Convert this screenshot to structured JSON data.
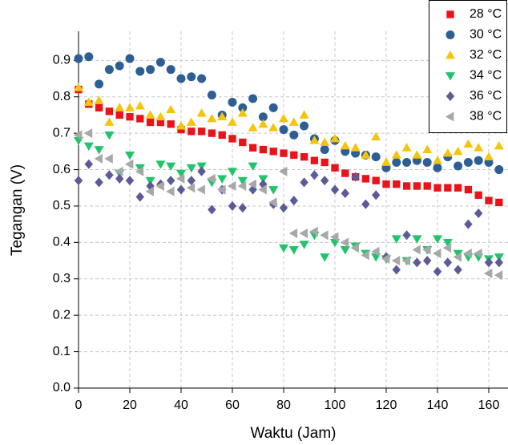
{
  "chart_data": {
    "type": "scatter",
    "xlabel": "Waktu (Jam)",
    "ylabel": "Tegangan (V)",
    "x": [
      0,
      4,
      8,
      12,
      16,
      20,
      24,
      28,
      32,
      36,
      40,
      44,
      48,
      52,
      56,
      60,
      64,
      68,
      72,
      76,
      80,
      84,
      88,
      92,
      96,
      100,
      104,
      108,
      112,
      116,
      120,
      124,
      128,
      132,
      136,
      140,
      144,
      148,
      152,
      156,
      160,
      164
    ],
    "series": [
      {
        "name": "28 °C",
        "color": "#e8141a",
        "marker": "square",
        "values": [
          0.82,
          0.78,
          0.77,
          0.76,
          0.75,
          0.745,
          0.74,
          0.73,
          0.73,
          0.725,
          0.71,
          0.705,
          0.705,
          0.7,
          0.695,
          0.685,
          0.675,
          0.66,
          0.655,
          0.65,
          0.645,
          0.64,
          0.635,
          0.625,
          0.62,
          0.605,
          0.59,
          0.58,
          0.575,
          0.57,
          0.56,
          0.56,
          0.555,
          0.555,
          0.555,
          0.55,
          0.55,
          0.55,
          0.545,
          0.53,
          0.515,
          0.51
        ]
      },
      {
        "name": "30 °C",
        "color": "#2e5f94",
        "marker": "circle",
        "values": [
          0.905,
          0.91,
          0.835,
          0.875,
          0.885,
          0.905,
          0.87,
          0.875,
          0.895,
          0.875,
          0.85,
          0.855,
          0.85,
          0.805,
          0.75,
          0.785,
          0.77,
          0.795,
          0.745,
          0.77,
          0.71,
          0.695,
          0.72,
          0.685,
          0.655,
          0.68,
          0.65,
          0.645,
          0.64,
          0.635,
          0.605,
          0.62,
          0.62,
          0.625,
          0.62,
          0.605,
          0.635,
          0.61,
          0.62,
          0.625,
          0.62,
          0.6
        ]
      },
      {
        "name": "32 °C",
        "color": "#f5c40f",
        "marker": "triangle-up",
        "values": [
          0.825,
          0.785,
          0.79,
          0.73,
          0.77,
          0.77,
          0.775,
          0.75,
          0.745,
          0.765,
          0.72,
          0.73,
          0.755,
          0.74,
          0.745,
          0.73,
          0.755,
          0.715,
          0.725,
          0.715,
          0.74,
          0.73,
          0.75,
          0.68,
          0.675,
          0.685,
          0.665,
          0.66,
          0.64,
          0.69,
          0.62,
          0.64,
          0.66,
          0.64,
          0.655,
          0.625,
          0.645,
          0.65,
          0.67,
          0.66,
          0.635,
          0.665
        ]
      },
      {
        "name": "34 °C",
        "color": "#21c46b",
        "marker": "triangle-down",
        "values": [
          0.68,
          0.665,
          0.655,
          0.695,
          0.59,
          0.64,
          0.605,
          0.57,
          0.615,
          0.61,
          0.59,
          0.605,
          0.61,
          0.565,
          0.575,
          0.595,
          0.57,
          0.61,
          0.575,
          0.545,
          0.385,
          0.38,
          0.395,
          0.42,
          0.36,
          0.4,
          0.38,
          0.39,
          0.37,
          0.36,
          0.355,
          0.41,
          0.35,
          0.41,
          0.38,
          0.41,
          0.4,
          0.37,
          0.36,
          0.36,
          0.355,
          0.36
        ]
      },
      {
        "name": "36 °C",
        "color": "#5b5b9a",
        "marker": "diamond",
        "values": [
          0.57,
          0.615,
          0.565,
          0.585,
          0.575,
          0.57,
          0.525,
          0.555,
          0.56,
          0.57,
          0.545,
          0.57,
          0.595,
          0.49,
          0.545,
          0.5,
          0.495,
          0.545,
          0.56,
          0.505,
          0.495,
          0.515,
          0.565,
          0.585,
          0.57,
          0.545,
          0.535,
          0.58,
          0.505,
          0.53,
          0.36,
          0.325,
          0.42,
          0.345,
          0.35,
          0.32,
          0.345,
          0.325,
          0.45,
          0.48,
          0.345,
          0.345
        ]
      },
      {
        "name": "38 °C",
        "color": "#a8a8a8",
        "marker": "triangle-left",
        "values": [
          0.695,
          0.7,
          0.63,
          0.63,
          0.595,
          0.615,
          0.595,
          0.54,
          0.555,
          0.54,
          0.575,
          0.55,
          0.545,
          0.575,
          0.545,
          0.555,
          0.555,
          0.56,
          0.545,
          0.51,
          0.595,
          0.425,
          0.425,
          0.43,
          0.42,
          0.415,
          0.4,
          0.385,
          0.365,
          0.375,
          0.355,
          0.35,
          0.35,
          0.38,
          0.38,
          0.37,
          0.385,
          0.36,
          0.37,
          0.37,
          0.315,
          0.31
        ]
      }
    ],
    "xlim": [
      0,
      167.5
    ],
    "ylim": [
      0,
      0.98
    ],
    "xticks": [
      0,
      20,
      40,
      60,
      80,
      100,
      120,
      140,
      160
    ],
    "yticks": [
      {
        "value": 0,
        "label": "0.0"
      },
      0.1,
      0.2,
      0.3,
      0.4,
      0.5,
      0.6,
      0.7,
      0.8,
      0.9
    ],
    "grid": true,
    "legend": "upper right"
  }
}
